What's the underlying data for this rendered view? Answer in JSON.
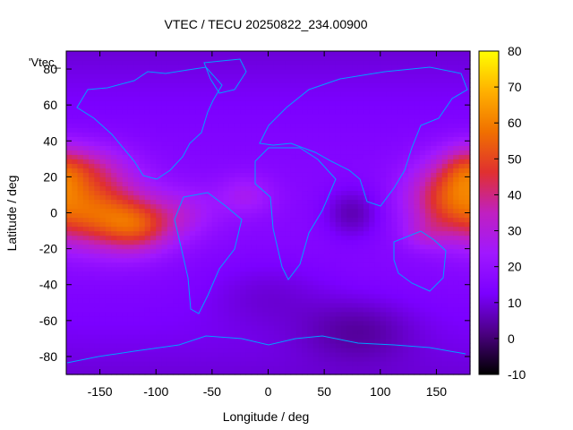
{
  "chart_data": {
    "type": "heatmap",
    "title": "VTEC / TECU 20250822_234.00900",
    "xlabel": "Longitude / deg",
    "ylabel": "Latitude / deg",
    "legend_label": "'Vtec_",
    "xlim": [
      -180,
      180
    ],
    "ylim": [
      -90,
      90
    ],
    "x_ticks": [
      -150,
      -100,
      -50,
      0,
      50,
      100,
      150
    ],
    "y_ticks": [
      -80,
      -60,
      -40,
      -20,
      0,
      20,
      40,
      60,
      80
    ],
    "colorbar": {
      "range": [
        -10,
        80
      ],
      "ticks": [
        -10,
        0,
        10,
        20,
        30,
        40,
        50,
        60,
        70,
        80
      ],
      "palette": [
        "#000000",
        "#4a0080",
        "#7b00ff",
        "#a018ff",
        "#c020c0",
        "#e03030",
        "#f07000",
        "#ffb000",
        "#ffff00"
      ]
    },
    "grid": false,
    "coastline_color": "#00a0ff",
    "anomalies": [
      {
        "lon": -150,
        "lat": 0,
        "sx": 32,
        "sy": 14,
        "tecu": 33
      },
      {
        "lon": -115,
        "lat": -8,
        "sx": 22,
        "sy": 10,
        "tecu": 22
      },
      {
        "lon": -165,
        "lat": 25,
        "sx": 28,
        "sy": 10,
        "tecu": 18
      },
      {
        "lon": -75,
        "lat": 0,
        "sx": 22,
        "sy": 10,
        "tecu": 10
      },
      {
        "lon": -20,
        "lat": 10,
        "sx": 18,
        "sy": 8,
        "tecu": 10
      },
      {
        "lon": 160,
        "lat": 8,
        "sx": 26,
        "sy": 14,
        "tecu": 28
      },
      {
        "lon": 175,
        "lat": 25,
        "sx": 14,
        "sy": 10,
        "tecu": 10
      },
      {
        "lon": 140,
        "lat": -12,
        "sx": 14,
        "sy": 6,
        "tecu": 8
      },
      {
        "lon": 75,
        "lat": 0,
        "sx": 18,
        "sy": 10,
        "tecu": -10
      },
      {
        "lon": 0,
        "lat": -45,
        "sx": 40,
        "sy": 14,
        "tecu": -5
      },
      {
        "lon": 80,
        "lat": -65,
        "sx": 35,
        "sy": 12,
        "tecu": -8
      }
    ]
  }
}
